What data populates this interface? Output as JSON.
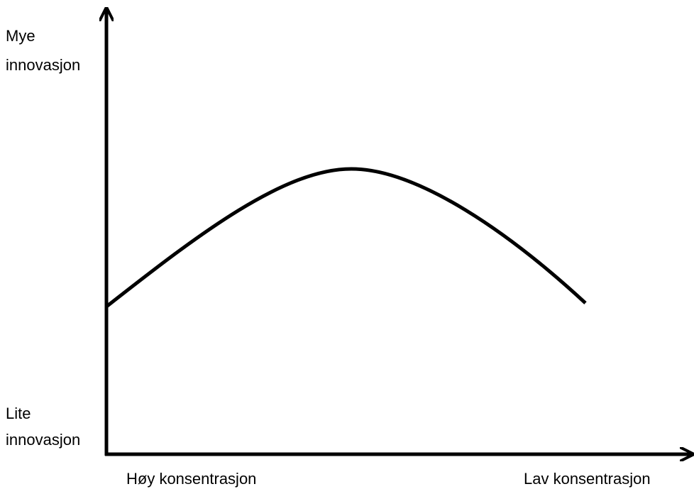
{
  "diagram": {
    "y_axis": {
      "top_label": [
        "Mye",
        "innovasjon"
      ],
      "bottom_label": [
        "Lite",
        "innovasjon"
      ]
    },
    "x_axis": {
      "left_label": "Høy konsentrasjon",
      "right_label": "Lav konsentrasjon"
    }
  }
}
